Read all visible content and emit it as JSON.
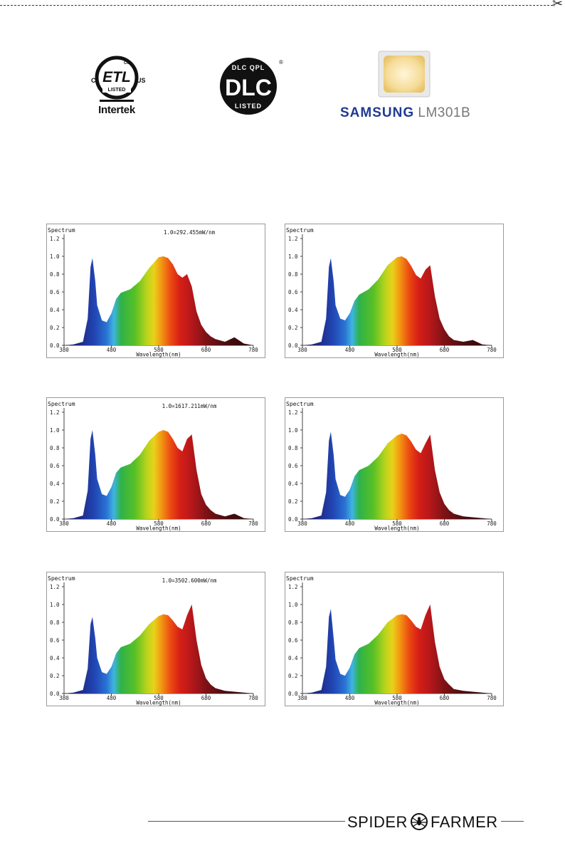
{
  "certifications": {
    "intertek_label": "Intertek",
    "etl_mark": "ETL",
    "etl_c": "C",
    "etl_us": "US",
    "etl_cm": "CM",
    "etl_listed": "LISTED",
    "dlc_top": "DLC QPL",
    "dlc_main": "DLC",
    "dlc_bottom": "LISTED",
    "dlc_reg": "®",
    "samsung_brand": "SAMSUNG",
    "samsung_model": "LM301B"
  },
  "footer": {
    "brand_left": "SPIDER",
    "brand_right": "FARMER",
    "logo_icon": "spider-logo-icon"
  },
  "chart_data": [
    {
      "type": "area",
      "title": "Spectrum",
      "annotation": "1.0=292.455mW/nm",
      "xlabel": "Wavelength(nm)",
      "xticks": [
        "380",
        "480",
        "580",
        "680",
        "780"
      ],
      "yticks": [
        "0.0",
        "0.2",
        "0.4",
        "0.6",
        "0.8",
        "1.0",
        "1.2"
      ],
      "xlim": [
        380,
        780
      ],
      "ylim": [
        0,
        1.2
      ],
      "x": [
        380,
        400,
        420,
        430,
        436,
        440,
        446,
        450,
        460,
        470,
        480,
        490,
        500,
        520,
        540,
        560,
        580,
        590,
        600,
        610,
        620,
        630,
        640,
        650,
        660,
        670,
        680,
        690,
        700,
        720,
        740,
        760,
        780
      ],
      "y": [
        0,
        0.01,
        0.04,
        0.3,
        0.88,
        0.98,
        0.72,
        0.45,
        0.28,
        0.26,
        0.36,
        0.52,
        0.59,
        0.63,
        0.72,
        0.87,
        0.99,
        1.0,
        0.98,
        0.91,
        0.8,
        0.76,
        0.8,
        0.66,
        0.38,
        0.23,
        0.15,
        0.1,
        0.07,
        0.04,
        0.09,
        0.02,
        0
      ]
    },
    {
      "type": "area",
      "title": "Spectrum",
      "annotation": "",
      "xlabel": "Wavelength(nm)",
      "xticks": [
        "380",
        "480",
        "580",
        "680",
        "780"
      ],
      "yticks": [
        "0.0",
        "0.2",
        "0.4",
        "0.6",
        "0.8",
        "1.0",
        "1.2"
      ],
      "xlim": [
        380,
        780
      ],
      "ylim": [
        0,
        1.2
      ],
      "x": [
        380,
        400,
        420,
        430,
        436,
        440,
        446,
        450,
        460,
        470,
        480,
        490,
        500,
        520,
        540,
        560,
        580,
        590,
        600,
        610,
        620,
        630,
        640,
        650,
        660,
        670,
        680,
        690,
        700,
        720,
        740,
        760,
        780
      ],
      "y": [
        0,
        0.01,
        0.04,
        0.3,
        0.88,
        0.98,
        0.72,
        0.45,
        0.3,
        0.28,
        0.36,
        0.5,
        0.57,
        0.63,
        0.74,
        0.9,
        0.99,
        1.0,
        0.97,
        0.89,
        0.79,
        0.75,
        0.85,
        0.9,
        0.55,
        0.3,
        0.18,
        0.1,
        0.06,
        0.04,
        0.06,
        0.01,
        0
      ]
    },
    {
      "type": "area",
      "title": "Spectrum",
      "annotation": "1.0=1617.211mW/nm",
      "xlabel": "Wavelength(nm)",
      "xticks": [
        "380",
        "480",
        "580",
        "680",
        "780"
      ],
      "yticks": [
        "0.0",
        "0.2",
        "0.4",
        "0.6",
        "0.8",
        "1.0",
        "1.2"
      ],
      "xlim": [
        380,
        780
      ],
      "ylim": [
        0,
        1.2
      ],
      "x": [
        380,
        400,
        420,
        430,
        436,
        440,
        446,
        450,
        460,
        470,
        480,
        490,
        500,
        520,
        540,
        560,
        580,
        590,
        600,
        610,
        620,
        630,
        640,
        650,
        660,
        670,
        680,
        690,
        700,
        720,
        740,
        760,
        780
      ],
      "y": [
        0,
        0.01,
        0.04,
        0.32,
        0.9,
        1.0,
        0.72,
        0.45,
        0.28,
        0.26,
        0.36,
        0.52,
        0.58,
        0.62,
        0.72,
        0.88,
        0.98,
        1.0,
        0.98,
        0.9,
        0.8,
        0.76,
        0.9,
        0.95,
        0.55,
        0.28,
        0.16,
        0.1,
        0.06,
        0.03,
        0.06,
        0.01,
        0
      ]
    },
    {
      "type": "area",
      "title": "Spectrum",
      "annotation": "",
      "xlabel": "Wavelength(nm)",
      "xticks": [
        "380",
        "480",
        "580",
        "680",
        "780"
      ],
      "yticks": [
        "0.0",
        "0.2",
        "0.4",
        "0.6",
        "0.8",
        "1.0",
        "1.2"
      ],
      "xlim": [
        380,
        780
      ],
      "ylim": [
        0,
        1.2
      ],
      "x": [
        380,
        400,
        420,
        430,
        436,
        440,
        446,
        450,
        460,
        470,
        480,
        490,
        500,
        520,
        540,
        560,
        580,
        590,
        600,
        610,
        620,
        630,
        640,
        650,
        660,
        670,
        680,
        690,
        700,
        720,
        740,
        760,
        780
      ],
      "y": [
        0,
        0.01,
        0.04,
        0.3,
        0.88,
        0.98,
        0.72,
        0.45,
        0.27,
        0.25,
        0.33,
        0.48,
        0.55,
        0.6,
        0.7,
        0.85,
        0.94,
        0.96,
        0.94,
        0.87,
        0.78,
        0.74,
        0.85,
        0.95,
        0.55,
        0.3,
        0.17,
        0.1,
        0.06,
        0.03,
        0.02,
        0.01,
        0
      ]
    },
    {
      "type": "area",
      "title": "Spectrum",
      "annotation": "1.0=3502.600mW/nm",
      "xlabel": "Wavelength(nm)",
      "xticks": [
        "380",
        "480",
        "580",
        "680",
        "780"
      ],
      "yticks": [
        "0.0",
        "0.2",
        "0.4",
        "0.6",
        "0.8",
        "1.0",
        "1.2"
      ],
      "xlim": [
        380,
        780
      ],
      "ylim": [
        0,
        1.2
      ],
      "x": [
        380,
        400,
        420,
        430,
        436,
        440,
        446,
        450,
        460,
        470,
        480,
        490,
        500,
        520,
        540,
        560,
        580,
        590,
        600,
        610,
        620,
        630,
        640,
        650,
        660,
        670,
        680,
        690,
        700,
        720,
        740,
        760,
        780
      ],
      "y": [
        0,
        0.01,
        0.04,
        0.28,
        0.78,
        0.86,
        0.62,
        0.4,
        0.24,
        0.22,
        0.3,
        0.45,
        0.52,
        0.56,
        0.65,
        0.78,
        0.87,
        0.89,
        0.88,
        0.82,
        0.75,
        0.72,
        0.88,
        1.0,
        0.6,
        0.32,
        0.17,
        0.1,
        0.06,
        0.03,
        0.02,
        0.01,
        0
      ]
    },
    {
      "type": "area",
      "title": "Spectrum",
      "annotation": "",
      "xlabel": "Wavelength(nm)",
      "xticks": [
        "380",
        "480",
        "580",
        "680",
        "780"
      ],
      "yticks": [
        "0.0",
        "0.2",
        "0.4",
        "0.6",
        "0.8",
        "1.0",
        "1.2"
      ],
      "xlim": [
        380,
        780
      ],
      "ylim": [
        0,
        1.2
      ],
      "x": [
        380,
        400,
        420,
        430,
        436,
        440,
        446,
        450,
        460,
        470,
        480,
        490,
        500,
        520,
        540,
        560,
        580,
        590,
        600,
        610,
        620,
        630,
        640,
        650,
        660,
        670,
        680,
        690,
        700,
        720,
        740,
        760,
        780
      ],
      "y": [
        0,
        0.01,
        0.04,
        0.3,
        0.86,
        0.95,
        0.62,
        0.38,
        0.22,
        0.2,
        0.29,
        0.44,
        0.51,
        0.56,
        0.66,
        0.8,
        0.88,
        0.89,
        0.88,
        0.82,
        0.75,
        0.72,
        0.88,
        1.0,
        0.58,
        0.3,
        0.16,
        0.1,
        0.05,
        0.03,
        0.02,
        0.01,
        0
      ]
    }
  ]
}
